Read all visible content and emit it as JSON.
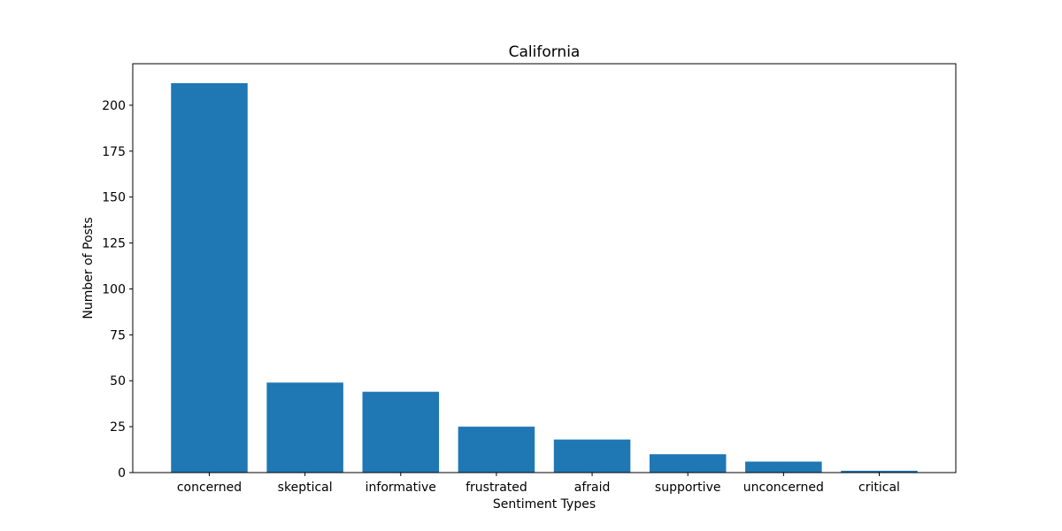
{
  "chart_data": {
    "type": "bar",
    "title": "California",
    "xlabel": "Sentiment Types",
    "ylabel": "Number of Posts",
    "categories": [
      "concerned",
      "skeptical",
      "informative",
      "frustrated",
      "afraid",
      "supportive",
      "unconcerned",
      "critical"
    ],
    "values": [
      212,
      49,
      44,
      25,
      18,
      10,
      6,
      1
    ],
    "ylim": [
      0,
      222.6
    ],
    "yticks": [
      0,
      25,
      50,
      75,
      100,
      125,
      150,
      175,
      200
    ],
    "grid": false,
    "bar_color": "#1f77b4"
  }
}
